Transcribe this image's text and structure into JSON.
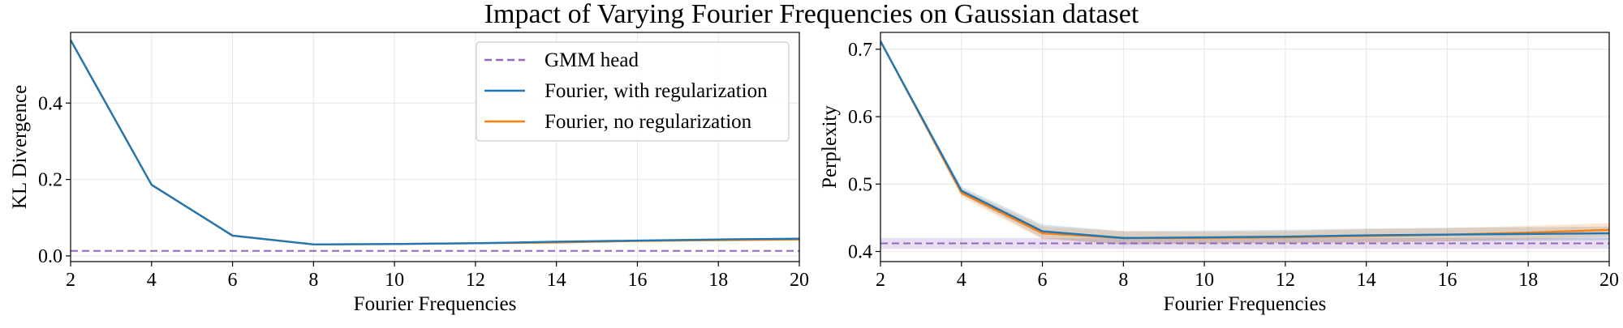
{
  "suptitle": "Impact of Varying Fourier Frequencies on Gaussian dataset",
  "colors": {
    "gmm": "#9467bd",
    "reg": "#1f77b4",
    "noreg": "#ff7f0e",
    "grid": "#e6e6e6",
    "axis": "#000000"
  },
  "chart_data": [
    {
      "type": "line",
      "xlabel": "Fourier Frequencies",
      "ylabel": "KL Divergence",
      "xlim": [
        2,
        20
      ],
      "ylim": [
        -0.015,
        0.585
      ],
      "xticks": [
        2,
        4,
        6,
        8,
        10,
        12,
        14,
        16,
        18,
        20
      ],
      "yticks": [
        0.0,
        0.2,
        0.4
      ],
      "ytick_labels": [
        "0.0",
        "0.2",
        "0.4"
      ],
      "grid": true,
      "legend_position": "top-right",
      "x": [
        2,
        4,
        6,
        8,
        10,
        12,
        14,
        16,
        18,
        20
      ],
      "reference_line": {
        "name": "GMM head",
        "value": 0.013
      },
      "series": [
        {
          "name": "Fourier, with regularization",
          "values": [
            0.565,
            0.186,
            0.053,
            0.03,
            0.031,
            0.033,
            0.037,
            0.04,
            0.043,
            0.045
          ]
        },
        {
          "name": "Fourier, no regularization",
          "values": [
            0.565,
            0.186,
            0.053,
            0.03,
            0.031,
            0.033,
            0.035,
            0.039,
            0.041,
            0.043
          ]
        }
      ]
    },
    {
      "type": "line",
      "xlabel": "Fourier Frequencies",
      "ylabel": "Perplexity",
      "xlim": [
        2,
        20
      ],
      "ylim": [
        0.385,
        0.725
      ],
      "xticks": [
        2,
        4,
        6,
        8,
        10,
        12,
        14,
        16,
        18,
        20
      ],
      "yticks": [
        0.4,
        0.5,
        0.6,
        0.7
      ],
      "ytick_labels": [
        "0.4",
        "0.5",
        "0.6",
        "0.7"
      ],
      "grid": true,
      "x": [
        2,
        4,
        6,
        8,
        10,
        12,
        14,
        16,
        18,
        20
      ],
      "reference_line": {
        "name": "GMM head",
        "value": 0.412,
        "band": [
          0.404,
          0.42
        ]
      },
      "series": [
        {
          "name": "Fourier, with regularization",
          "values": [
            0.712,
            0.49,
            0.43,
            0.42,
            0.421,
            0.422,
            0.424,
            0.425,
            0.426,
            0.427
          ],
          "band_low": [
            0.712,
            0.484,
            0.42,
            0.41,
            0.412,
            0.413,
            0.414,
            0.415,
            0.416,
            0.417
          ],
          "band_high": [
            0.712,
            0.496,
            0.44,
            0.43,
            0.431,
            0.432,
            0.434,
            0.435,
            0.436,
            0.437
          ]
        },
        {
          "name": "Fourier, no regularization",
          "values": [
            0.712,
            0.487,
            0.427,
            0.42,
            0.42,
            0.421,
            0.423,
            0.425,
            0.428,
            0.432
          ],
          "band_low": [
            0.712,
            0.481,
            0.418,
            0.411,
            0.411,
            0.412,
            0.413,
            0.415,
            0.418,
            0.422
          ],
          "band_high": [
            0.712,
            0.493,
            0.437,
            0.43,
            0.429,
            0.43,
            0.433,
            0.435,
            0.438,
            0.442
          ]
        }
      ]
    }
  ]
}
